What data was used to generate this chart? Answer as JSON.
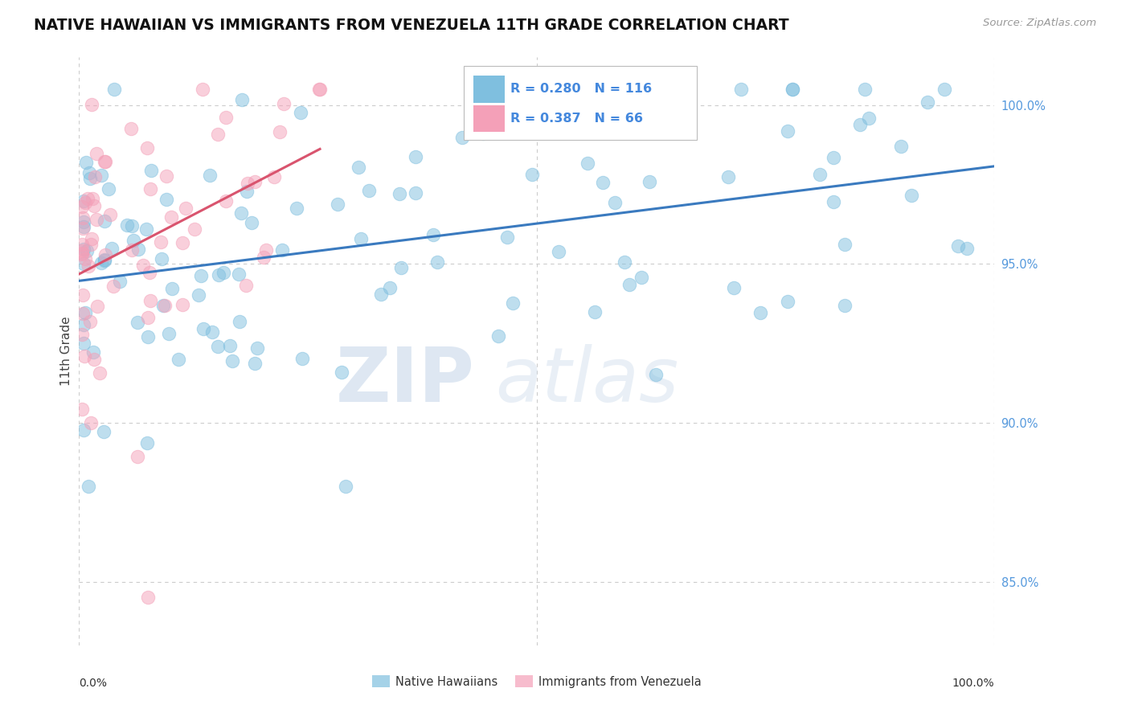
{
  "title": "NATIVE HAWAIIAN VS IMMIGRANTS FROM VENEZUELA 11TH GRADE CORRELATION CHART",
  "source_text": "Source: ZipAtlas.com",
  "ylabel": "11th Grade",
  "xlim": [
    0.0,
    100.0
  ],
  "ylim": [
    83.0,
    101.5
  ],
  "y_ticks": [
    85.0,
    90.0,
    95.0,
    100.0
  ],
  "y_tick_labels": [
    "85.0%",
    "90.0%",
    "95.0%",
    "100.0%"
  ],
  "blue_R": 0.28,
  "blue_N": 116,
  "pink_R": 0.387,
  "pink_N": 66,
  "blue_color": "#7fbfdf",
  "pink_color": "#f4a0b8",
  "blue_line_color": "#3a7abf",
  "pink_line_color": "#d9546e",
  "legend_label_blue": "Native Hawaiians",
  "legend_label_pink": "Immigrants from Venezuela",
  "watermark_zip": "ZIP",
  "watermark_atlas": "atlas",
  "background_color": "#ffffff",
  "grid_color": "#cccccc"
}
